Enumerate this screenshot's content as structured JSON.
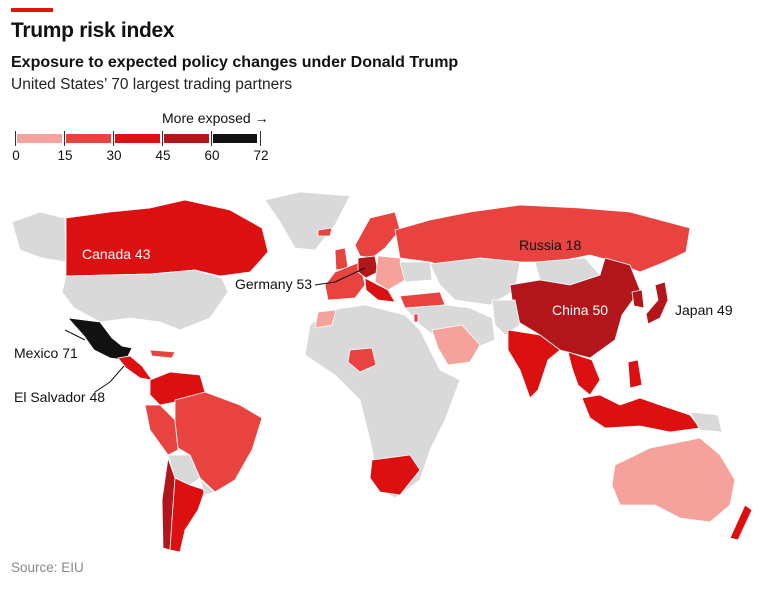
{
  "header": {
    "title": "Trump risk index",
    "subtitle": "Exposure to expected policy changes under Donald Trump",
    "description": "United States’ 70 largest trading partners"
  },
  "legend": {
    "label": "More exposed →",
    "ticks": [
      "0",
      "15",
      "30",
      "45",
      "60",
      "72"
    ],
    "bands": [
      {
        "range": [
          0,
          15
        ],
        "color": "#f4a29b"
      },
      {
        "range": [
          15,
          30
        ],
        "color": "#e8433f"
      },
      {
        "range": [
          30,
          45
        ],
        "color": "#dc1010"
      },
      {
        "range": [
          45,
          60
        ],
        "color": "#b3161a"
      },
      {
        "range": [
          60,
          72
        ],
        "color": "#111111"
      }
    ],
    "no_data_color": "#d9d9d9"
  },
  "labels": {
    "canada": "Canada 43",
    "russia": "Russia 18",
    "germany": "Germany 53",
    "china": "China 50",
    "japan": "Japan 49",
    "mexico": "Mexico 71",
    "el_salvador": "El Salvador 48"
  },
  "labelled_scores": {
    "Canada": 43,
    "Russia": 18,
    "Germany": 53,
    "China": 50,
    "Japan": 49,
    "Mexico": 71,
    "El Salvador": 48
  },
  "source": "Source: EIU"
}
